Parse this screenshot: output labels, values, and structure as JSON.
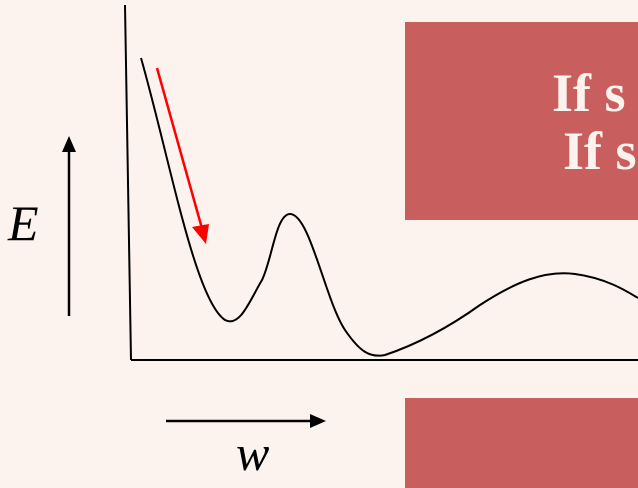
{
  "labels": {
    "y_axis": "E",
    "x_axis": "w"
  },
  "boxes": {
    "top": {
      "line1": "If s",
      "line2": "If s"
    },
    "bottom": {
      "text": ""
    }
  },
  "colors": {
    "background": "#fdf3ee",
    "box": "#c95e5e",
    "curve": "#000000",
    "descent_arrow": "#ff0000"
  }
}
